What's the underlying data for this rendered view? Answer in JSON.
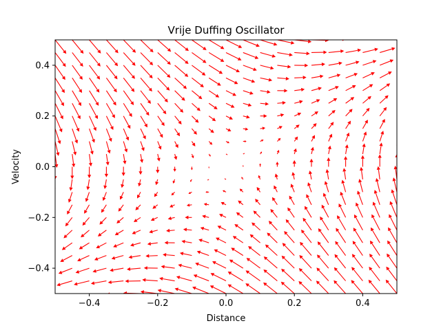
{
  "chart_data": {
    "type": "quiver",
    "title": "Vrije Duffing Oscillator",
    "xlabel": "Distance",
    "ylabel": "Velocity",
    "xlim": [
      -0.5,
      0.5
    ],
    "ylim": [
      -0.5,
      0.5
    ],
    "x_ticks": [
      -0.4,
      -0.2,
      0.0,
      0.2,
      0.4
    ],
    "y_ticks": [
      -0.4,
      -0.2,
      0.0,
      0.2,
      0.4
    ],
    "x_tick_labels": [
      "−0.4",
      "−0.2",
      "0.0",
      "0.2",
      "0.4"
    ],
    "y_tick_labels": [
      "−0.4",
      "−0.2",
      "0.0",
      "0.2",
      "0.4"
    ],
    "grid": false,
    "arrow_color": "#ff0000",
    "field": {
      "x_start": -0.5,
      "x_end": 0.5,
      "x_step": 0.05,
      "y_start": -0.5,
      "y_end": 0.5,
      "y_step": 0.05,
      "u": "y",
      "v": "x - x^3 - 0.5*y"
    }
  }
}
